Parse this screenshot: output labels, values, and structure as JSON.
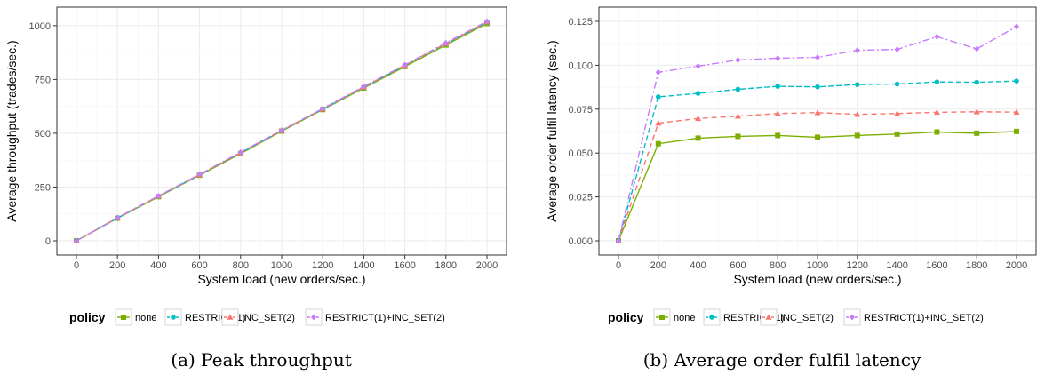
{
  "colors": {
    "none": "#7CAE00",
    "restrict": "#00BFC4",
    "incset": "#F8766D",
    "both": "#C77CFF"
  },
  "legend": {
    "title": "policy",
    "items": [
      "none",
      "RESTRICT(1)",
      "INC_SET(2)",
      "RESTRICT(1)+INC_SET(2)"
    ]
  },
  "captions": [
    "(a) Peak throughput",
    "(b) Average order fulfil latency"
  ],
  "chart_data": [
    {
      "type": "line",
      "xlabel": "System load (new orders/sec.)",
      "ylabel": "Average throughput (trades/sec.)",
      "x": [
        0,
        200,
        400,
        600,
        800,
        1000,
        1200,
        1400,
        1600,
        1800,
        2000
      ],
      "xticks": [
        "0",
        "200",
        "400",
        "600",
        "800",
        "1000",
        "1200",
        "1400",
        "1600",
        "1800",
        "2000"
      ],
      "yticks": [
        "0",
        "250",
        "500",
        "750",
        "1000"
      ],
      "xlim": [
        0,
        2000
      ],
      "ylim": [
        0,
        1020
      ],
      "grid": true,
      "legend": "bottom",
      "series": [
        {
          "name": "none",
          "values": [
            0,
            105,
            205,
            305,
            405,
            510,
            610,
            710,
            810,
            910,
            1010
          ]
        },
        {
          "name": "RESTRICT(1)",
          "values": [
            0,
            106,
            207,
            307,
            409,
            512,
            612,
            713,
            815,
            915,
            1015
          ]
        },
        {
          "name": "INC_SET(2)",
          "values": [
            0,
            107,
            208,
            308,
            410,
            513,
            613,
            715,
            816,
            917,
            1017
          ]
        },
        {
          "name": "RESTRICT(1)+INC_SET(2)",
          "values": [
            0,
            108,
            209,
            309,
            412,
            514,
            615,
            718,
            818,
            920,
            1020
          ]
        }
      ]
    },
    {
      "type": "line",
      "xlabel": "System load (new orders/sec.)",
      "ylabel": "Average order fulfil latency (sec.)",
      "x": [
        0,
        200,
        400,
        600,
        800,
        1000,
        1200,
        1400,
        1600,
        1800,
        2000
      ],
      "xticks": [
        "0",
        "200",
        "400",
        "600",
        "800",
        "1000",
        "1200",
        "1400",
        "1600",
        "1800",
        "2000"
      ],
      "yticks": [
        "0.000",
        "0.025",
        "0.050",
        "0.075",
        "0.100",
        "0.125"
      ],
      "xlim": [
        0,
        2000
      ],
      "ylim": [
        0,
        0.125
      ],
      "grid": true,
      "legend": "bottom",
      "series": [
        {
          "name": "none",
          "values": [
            0,
            0.0553,
            0.0585,
            0.0595,
            0.06,
            0.059,
            0.06,
            0.0608,
            0.062,
            0.0613,
            0.0623
          ]
        },
        {
          "name": "RESTRICT(1)",
          "values": [
            0,
            0.082,
            0.084,
            0.0863,
            0.088,
            0.0877,
            0.089,
            0.0893,
            0.0905,
            0.0903,
            0.091
          ]
        },
        {
          "name": "INC_SET(2)",
          "values": [
            0,
            0.067,
            0.0697,
            0.071,
            0.0725,
            0.073,
            0.072,
            0.0725,
            0.0732,
            0.0735,
            0.0733
          ]
        },
        {
          "name": "RESTRICT(1)+INC_SET(2)",
          "values": [
            0,
            0.096,
            0.0995,
            0.103,
            0.104,
            0.1045,
            0.1085,
            0.109,
            0.1163,
            0.1093,
            0.122
          ]
        }
      ]
    }
  ]
}
